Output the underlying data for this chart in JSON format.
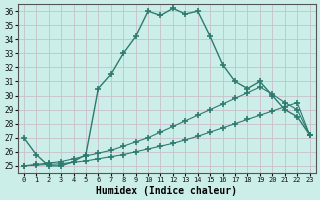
{
  "xlabel": "Humidex (Indice chaleur)",
  "bg_color": "#cceee8",
  "line_color": "#2d7a6e",
  "grid_color": "#c8c0cc",
  "xlim": [
    -0.5,
    23.5
  ],
  "ylim": [
    24.5,
    36.5
  ],
  "yticks": [
    25,
    26,
    27,
    28,
    29,
    30,
    31,
    32,
    33,
    34,
    35,
    36
  ],
  "xticks": [
    0,
    1,
    2,
    3,
    4,
    5,
    6,
    7,
    8,
    9,
    10,
    11,
    12,
    13,
    14,
    15,
    16,
    17,
    18,
    19,
    20,
    21,
    22,
    23
  ],
  "line1_x": [
    0,
    1,
    2,
    3,
    4,
    5,
    6,
    7,
    8,
    9,
    10,
    11,
    12,
    13,
    14,
    15,
    16,
    17,
    18,
    19,
    20,
    21,
    22,
    23
  ],
  "line1_y": [
    27.0,
    25.8,
    25.0,
    25.0,
    25.3,
    25.8,
    30.5,
    31.5,
    33.0,
    34.2,
    36.0,
    35.7,
    36.2,
    35.8,
    36.0,
    34.2,
    32.2,
    31.0,
    30.5,
    31.0,
    30.0,
    29.0,
    28.5,
    27.2
  ],
  "line2_x": [
    0,
    1,
    2,
    3,
    4,
    5,
    6,
    7,
    8,
    9,
    10,
    11,
    12,
    13,
    14,
    15,
    16,
    17,
    18,
    19,
    20,
    21,
    22,
    23
  ],
  "line2_y": [
    25.0,
    25.05,
    25.1,
    25.15,
    25.25,
    25.35,
    25.5,
    25.65,
    25.8,
    26.0,
    26.2,
    26.4,
    26.6,
    26.85,
    27.1,
    27.4,
    27.7,
    28.0,
    28.3,
    28.6,
    28.9,
    29.2,
    29.5,
    27.2
  ],
  "line3_x": [
    0,
    1,
    2,
    3,
    4,
    5,
    6,
    7,
    8,
    9,
    10,
    11,
    12,
    13,
    14,
    15,
    16,
    17,
    18,
    19,
    20,
    21,
    22,
    23
  ],
  "line3_y": [
    25.0,
    25.1,
    25.2,
    25.3,
    25.5,
    25.7,
    25.9,
    26.1,
    26.4,
    26.7,
    27.0,
    27.4,
    27.8,
    28.2,
    28.6,
    29.0,
    29.4,
    29.8,
    30.2,
    30.6,
    30.1,
    29.5,
    29.0,
    27.2
  ]
}
